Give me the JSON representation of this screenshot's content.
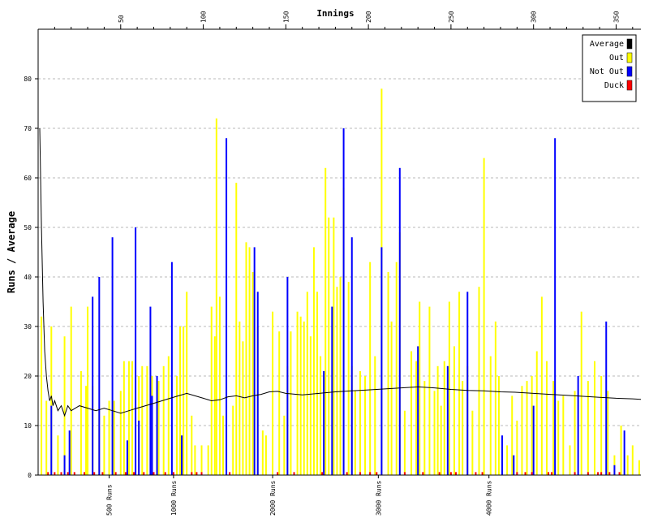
{
  "chart_data": {
    "type": "bar",
    "title": "",
    "xlabel": "Innings",
    "ylabel": "Runs / Average",
    "xlim": [
      0,
      365
    ],
    "ylim": [
      0,
      90
    ],
    "x_ticks": [
      50,
      100,
      150,
      200,
      250,
      300,
      350
    ],
    "y_ticks": [
      0,
      10,
      20,
      30,
      40,
      50,
      60,
      70,
      80
    ],
    "grid": {
      "horizontal": true,
      "style": "dashed"
    },
    "legend_position": "top-right",
    "series": [
      {
        "name": "Average",
        "color": "#000000",
        "type": "line",
        "x": [
          1,
          2,
          3,
          4,
          5,
          6,
          7,
          8,
          9,
          10,
          12,
          14,
          16,
          18,
          20,
          25,
          30,
          35,
          40,
          45,
          50,
          55,
          60,
          65,
          70,
          75,
          80,
          85,
          90,
          95,
          100,
          105,
          110,
          115,
          120,
          125,
          130,
          135,
          140,
          145,
          150,
          160,
          170,
          180,
          190,
          200,
          210,
          220,
          230,
          240,
          250,
          260,
          270,
          280,
          290,
          300,
          310,
          320,
          330,
          340,
          350,
          360,
          365
        ],
        "values": [
          70,
          50,
          35,
          25,
          20,
          17,
          15,
          16,
          14,
          15,
          13,
          14,
          12,
          14,
          13,
          14,
          13.5,
          13,
          13.5,
          13,
          12.5,
          13,
          13.5,
          14,
          14.5,
          15,
          15.5,
          16,
          16.5,
          16,
          15.5,
          15,
          15.2,
          15.8,
          16,
          15.6,
          16,
          16.3,
          16.8,
          16.9,
          16.5,
          16.2,
          16.5,
          16.8,
          17,
          17.2,
          17.4,
          17.6,
          17.8,
          17.6,
          17.3,
          17.1,
          17,
          16.8,
          16.7,
          16.5,
          16.3,
          16.1,
          15.9,
          15.7,
          15.5,
          15.4,
          15.3
        ]
      },
      {
        "name": "Out",
        "color": "#ffff00",
        "type": "bar",
        "x": [
          2,
          5,
          8,
          12,
          16,
          20,
          26,
          29,
          30,
          33,
          37,
          40,
          43,
          46,
          50,
          52,
          55,
          57,
          61,
          63,
          66,
          69,
          73,
          76,
          79,
          84,
          86,
          88,
          90,
          93,
          95,
          99,
          103,
          105,
          107,
          108,
          110,
          112,
          118,
          120,
          122,
          124,
          126,
          128,
          130,
          133,
          136,
          138,
          142,
          146,
          149,
          151,
          153,
          157,
          159,
          161,
          163,
          165,
          167,
          169,
          171,
          174,
          176,
          179,
          181,
          183,
          185,
          188,
          190,
          192,
          195,
          198,
          201,
          204,
          208,
          212,
          214,
          217,
          219,
          222,
          226,
          229,
          231,
          234,
          237,
          240,
          242,
          244,
          246,
          249,
          252,
          255,
          257,
          260,
          263,
          267,
          270,
          274,
          277,
          279,
          284,
          287,
          290,
          293,
          296,
          299,
          302,
          305,
          308,
          312,
          315,
          318,
          322,
          325,
          329,
          333,
          337,
          341,
          345,
          349,
          353,
          357,
          360,
          364
        ],
        "values": [
          32,
          15,
          30,
          8,
          28,
          34,
          21,
          18,
          34,
          18,
          13,
          12,
          15,
          15,
          17,
          23,
          23,
          23,
          20,
          22,
          22,
          20,
          19,
          22,
          24,
          20,
          30,
          30,
          37,
          12,
          6,
          6,
          6,
          34,
          28,
          72,
          36,
          12,
          14,
          59,
          31,
          27,
          47,
          46,
          41,
          30,
          9,
          8,
          33,
          29,
          12,
          22,
          29,
          33,
          32,
          31,
          37,
          28,
          46,
          37,
          24,
          62,
          52,
          52,
          38,
          40,
          58,
          39,
          22,
          17,
          21,
          20,
          43,
          24,
          78,
          41,
          31,
          43,
          49,
          13,
          25,
          23,
          35,
          19,
          34,
          17,
          22,
          14,
          23,
          35,
          26,
          37,
          19,
          22,
          13,
          38,
          64,
          24,
          31,
          20,
          6,
          16,
          11,
          18,
          19,
          20,
          25,
          36,
          23,
          19,
          15,
          16,
          6,
          17,
          33,
          19,
          23,
          20,
          17,
          4,
          10,
          4,
          6,
          3
        ]
      },
      {
        "name": "Not Out",
        "color": "#0000ff",
        "type": "bar",
        "x": [
          8,
          16,
          19,
          33,
          37,
          45,
          54,
          59,
          61,
          68,
          69,
          72,
          81,
          87,
          114,
          131,
          133,
          151,
          173,
          178,
          185,
          190,
          208,
          219,
          230,
          248,
          260,
          281,
          288,
          300,
          313,
          327,
          344,
          349,
          355
        ],
        "values": [
          14,
          4,
          9,
          36,
          40,
          48,
          7,
          50,
          11,
          34,
          16,
          20,
          43,
          8,
          68,
          46,
          37,
          40,
          21,
          34,
          70,
          48,
          46,
          62,
          26,
          22,
          37,
          8,
          4,
          14,
          68,
          20,
          31,
          2,
          9
        ]
      },
      {
        "name": "Duck",
        "color": "#ff0000",
        "type": "bar",
        "x": [
          6,
          10,
          14,
          18,
          22,
          28,
          34,
          39,
          47,
          53,
          58,
          64,
          70,
          77,
          82,
          93,
          96,
          99,
          116,
          145,
          155,
          172,
          187,
          195,
          201,
          205,
          222,
          233,
          243,
          250,
          253,
          265,
          269,
          290,
          295,
          299,
          309,
          311,
          325,
          333,
          339,
          341,
          346,
          352
        ],
        "values": [
          0.6,
          0.6,
          0.6,
          0.6,
          0.6,
          0.6,
          0.6,
          0.6,
          0.6,
          0.6,
          0.6,
          0.6,
          0.6,
          0.6,
          0.6,
          0.6,
          0.6,
          0.6,
          0.6,
          0.6,
          0.6,
          0.6,
          0.6,
          0.6,
          0.6,
          0.6,
          0.6,
          0.6,
          0.6,
          0.6,
          0.6,
          0.6,
          0.6,
          0.6,
          0.6,
          0.6,
          0.6,
          0.6,
          0.6,
          0.6,
          0.6,
          0.6,
          0.6,
          0.6
        ]
      }
    ],
    "milestones": [
      {
        "label": "500 Runs",
        "innings": 43
      },
      {
        "label": "1000 Runs",
        "innings": 82
      },
      {
        "label": "2000 Runs",
        "innings": 142
      },
      {
        "label": "3000 Runs",
        "innings": 206
      },
      {
        "label": "4000 Runs",
        "innings": 273
      }
    ]
  }
}
